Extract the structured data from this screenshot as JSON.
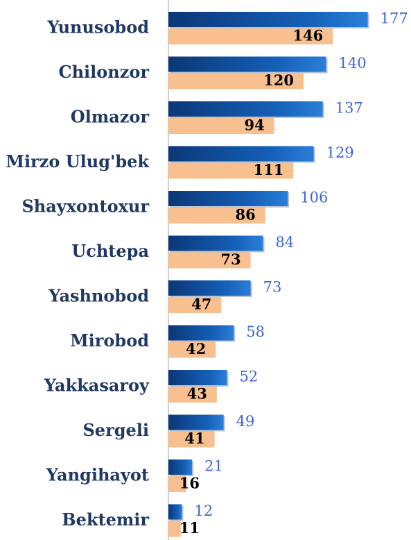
{
  "chart_data": {
    "type": "bar",
    "orientation": "horizontal",
    "categories": [
      "Yunusobod",
      "Chilonzor",
      "Olmazor",
      "Mirzo Ulug'bek",
      "Shayxontoxur",
      "Uchtepa",
      "Yashnobod",
      "Mirobod",
      "Yakkasaroy",
      "Sergeli",
      "Yangihayot",
      "Bektemir"
    ],
    "series": [
      {
        "color": "#1560b8",
        "values": [
          177,
          140,
          137,
          129,
          106,
          84,
          73,
          58,
          52,
          49,
          21,
          12
        ]
      },
      {
        "color": "#f9c08f",
        "values": [
          146,
          120,
          94,
          111,
          86,
          73,
          47,
          42,
          43,
          41,
          16,
          11
        ]
      }
    ],
    "xlim": [
      0,
      200
    ]
  }
}
